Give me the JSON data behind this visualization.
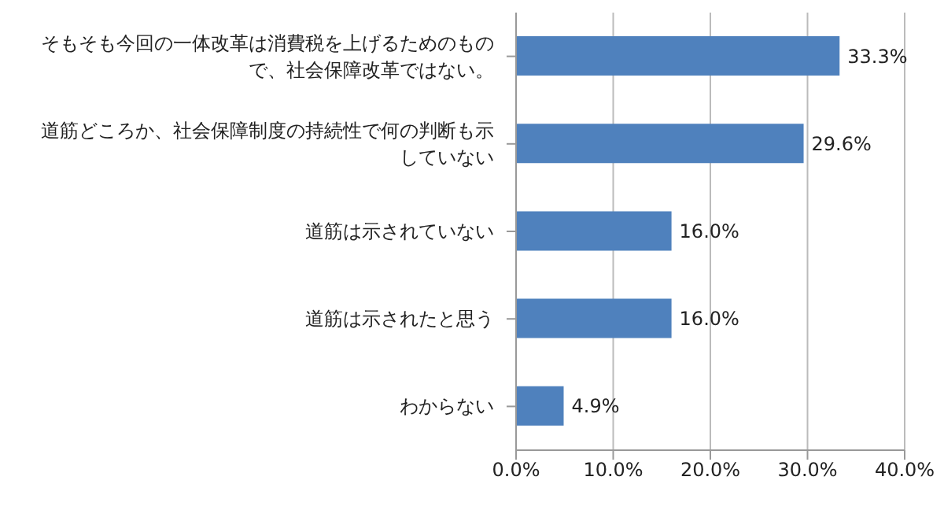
{
  "chart_data": {
    "type": "bar",
    "orientation": "horizontal",
    "categories": [
      "そもそも今回の一体改革は消費税を上げるためのもので、社会保障改革ではない。",
      "道筋どころか、社会保障制度の持続性で何の判断も示していない",
      "道筋は示されていない",
      "道筋は示されたと思う",
      "わからない"
    ],
    "values": [
      33.3,
      29.6,
      16.0,
      16.0,
      4.9
    ],
    "value_labels": [
      "33.3%",
      "29.6%",
      "16.0%",
      "16.0%",
      "4.9%"
    ],
    "color": "#4f81bd",
    "xlim": [
      0,
      40
    ],
    "xticks": [
      {
        "value": 0,
        "label": "0.0%"
      },
      {
        "value": 10,
        "label": "10.0%"
      },
      {
        "value": 20,
        "label": "20.0%"
      },
      {
        "value": 30,
        "label": "30.0%"
      },
      {
        "value": 40,
        "label": "40.0%"
      }
    ],
    "grid": "x",
    "legend": false
  }
}
